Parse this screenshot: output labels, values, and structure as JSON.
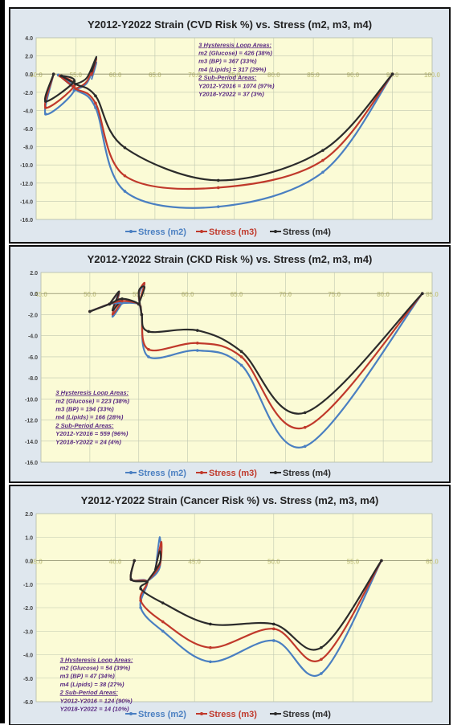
{
  "chart_data": [
    {
      "type": "line",
      "title": "Y2012-Y2022  Strain (CVD Risk %) vs. Stress (m2, m3, m4)",
      "xlim": [
        50.0,
        100.0
      ],
      "ylim": [
        -16.0,
        4.0
      ],
      "x_ticks": [
        "50.0",
        "55.0",
        "60.0",
        "65.0",
        "70.0",
        "75.0",
        "80.0",
        "85.0",
        "90.0",
        "95.0",
        "100.0"
      ],
      "y_ticks": [
        "4.0",
        "2.0",
        "0.0",
        "-2.0",
        "-4.0",
        "-6.0",
        "-8.0",
        "-10.0",
        "-12.0",
        "-14.0",
        "-16.0"
      ],
      "grid": true,
      "legend_position": "bottom",
      "series": [
        {
          "name": "Stress (m2)",
          "color": "#4a7fc1",
          "points": [
            [
              52.2,
              0
            ],
            [
              51.2,
              -4.4
            ],
            [
              54.8,
              -1.8
            ],
            [
              52.8,
              -0.1
            ],
            [
              55.0,
              -1.7
            ],
            [
              57.5,
              -3.7
            ],
            [
              61.2,
              -12.9
            ],
            [
              73.0,
              -14.6
            ],
            [
              86.2,
              -10.8
            ],
            [
              95.0,
              0
            ]
          ]
        },
        {
          "name": "Stress (m3)",
          "color": "#c0392b",
          "points": [
            [
              52.2,
              0
            ],
            [
              51.2,
              -3.7
            ],
            [
              54.8,
              -1.3
            ],
            [
              53.0,
              -0.2
            ],
            [
              55.0,
              -1.6
            ],
            [
              57.5,
              -3.2
            ],
            [
              61.2,
              -11.2
            ],
            [
              73.0,
              -12.5
            ],
            [
              86.2,
              -9.5
            ],
            [
              95.0,
              0
            ]
          ]
        },
        {
          "name": "Stress (m4)",
          "color": "#2b2b2b",
          "points": [
            [
              52.2,
              0
            ],
            [
              51.2,
              -3.0
            ],
            [
              54.8,
              -0.8
            ],
            [
              53.2,
              -0.2
            ],
            [
              55.0,
              -1.1
            ],
            [
              57.5,
              -2.4
            ],
            [
              61.2,
              -8.1
            ],
            [
              73.0,
              -11.7
            ],
            [
              86.2,
              -8.4
            ],
            [
              95.0,
              0
            ]
          ]
        }
      ],
      "loops": [
        {
          "color": "#4a7fc1",
          "start": [
            55.0,
            -1.7
          ],
          "points": [
            [
              56.4,
              -1.0
            ],
            [
              57.6,
              1.3
            ],
            [
              57.0,
              -0.6
            ]
          ]
        },
        {
          "color": "#c0392b",
          "start": [
            55.0,
            -1.6
          ],
          "points": [
            [
              56.4,
              -0.8
            ],
            [
              57.6,
              1.7
            ],
            [
              57.0,
              -0.2
            ]
          ]
        },
        {
          "color": "#2b2b2b",
          "start": [
            55.0,
            -1.1
          ],
          "points": [
            [
              56.4,
              -0.4
            ],
            [
              57.6,
              1.9
            ],
            [
              57.0,
              0.2
            ]
          ]
        }
      ],
      "annotation": {
        "x": 70.5,
        "y": 3.0,
        "lines": [
          "3 Hysteresis Loop Areas:",
          "m2 (Glucose) = 426 (38%)",
          "m3 (BP) = 367 (33%)",
          "m4 (Lipids) = 317 (29%)",
          "2 Sub-Period Areas:",
          "Y2012-Y2016 = 1074 (97%)",
          "Y2018-Y2022 = 37 (3%)"
        ]
      }
    },
    {
      "type": "line",
      "title": "Y2012-Y2022  Strain (CKD Risk %) vs. Stress (m2, m3, m4)",
      "xlim": [
        45.0,
        85.0
      ],
      "ylim": [
        -16.0,
        2.0
      ],
      "x_ticks": [
        "45.0",
        "50.0",
        "55.0",
        "60.0",
        "65.0",
        "70.0",
        "75.0",
        "80.0",
        "85.0"
      ],
      "y_ticks": [
        "2.0",
        "0.0",
        "-2.0",
        "-4.0",
        "-6.0",
        "-8.0",
        "-10.0",
        "-12.0",
        "-14.0",
        "-16.0"
      ],
      "grid": true,
      "legend_position": "bottom",
      "series": [
        {
          "name": "Stress (m2)",
          "color": "#4a7fc1",
          "points": [
            [
              50.0,
              -1.7
            ],
            [
              52.0,
              -1.0
            ],
            [
              53.3,
              -0.9
            ],
            [
              55.0,
              -1.0
            ],
            [
              55.3,
              -2.0
            ],
            [
              56.0,
              -6.0
            ],
            [
              61.0,
              -5.4
            ],
            [
              65.5,
              -6.8
            ],
            [
              72.0,
              -14.5
            ],
            [
              84.0,
              0
            ]
          ]
        },
        {
          "name": "Stress (m3)",
          "color": "#c0392b",
          "points": [
            [
              50.0,
              -1.7
            ],
            [
              52.0,
              -1.0
            ],
            [
              53.3,
              -0.7
            ],
            [
              55.0,
              -1.0
            ],
            [
              55.3,
              -2.0
            ],
            [
              56.0,
              -5.3
            ],
            [
              61.0,
              -4.7
            ],
            [
              65.5,
              -6.0
            ],
            [
              72.0,
              -12.7
            ],
            [
              84.0,
              0
            ]
          ]
        },
        {
          "name": "Stress (m4)",
          "color": "#2b2b2b",
          "points": [
            [
              50.0,
              -1.7
            ],
            [
              52.0,
              -1.0
            ],
            [
              53.3,
              -0.5
            ],
            [
              55.0,
              -1.0
            ],
            [
              55.3,
              -2.0
            ],
            [
              56.0,
              -3.6
            ],
            [
              61.0,
              -3.5
            ],
            [
              65.5,
              -5.5
            ],
            [
              72.0,
              -11.3
            ],
            [
              84.0,
              0
            ]
          ]
        }
      ],
      "loops": [
        {
          "color": "#4a7fc1",
          "start": [
            52.0,
            -1.0
          ],
          "points": [
            [
              53.0,
              0.0
            ],
            [
              52.3,
              -2.2
            ],
            [
              53.3,
              -0.9
            ]
          ]
        },
        {
          "color": "#c0392b",
          "start": [
            52.0,
            -1.0
          ],
          "points": [
            [
              53.0,
              0.1
            ],
            [
              52.3,
              -2.0
            ],
            [
              53.3,
              -0.7
            ]
          ]
        },
        {
          "color": "#2b2b2b",
          "start": [
            52.0,
            -1.0
          ],
          "points": [
            [
              53.0,
              0.2
            ],
            [
              52.3,
              -1.6
            ],
            [
              53.3,
              -0.5
            ]
          ]
        },
        {
          "color": "#4a7fc1",
          "start": [
            55.0,
            -1.0
          ],
          "points": [
            [
              55.6,
              0.9
            ],
            [
              55.0,
              -0.2
            ],
            [
              55.3,
              -2.0
            ]
          ]
        },
        {
          "color": "#c0392b",
          "start": [
            55.0,
            -1.0
          ],
          "points": [
            [
              55.6,
              1.0
            ],
            [
              55.0,
              0.0
            ],
            [
              55.3,
              -2.0
            ]
          ]
        },
        {
          "color": "#2b2b2b",
          "start": [
            55.0,
            -1.0
          ],
          "points": [
            [
              55.6,
              0.6
            ],
            [
              55.0,
              0.2
            ],
            [
              55.3,
              -2.0
            ]
          ]
        }
      ],
      "annotation": {
        "x": 46.5,
        "y": -9.6,
        "lines": [
          "3 Hysteresis Loop Areas:",
          "m2 (Glucose) = 223 (38%)",
          "m3 (BP) = 194 (33%)",
          "m4 (Lipids) = 166 (28%)",
          "2 Sub-Period Areas:",
          "Y2012-Y2016 = 559 (96%)",
          "Y2018-Y2022 = 24 (4%)"
        ]
      }
    },
    {
      "type": "line",
      "title": "Y2012-Y2022  Strain (Cancer Risk %) vs. Stress (m2, m3, m4)",
      "xlim": [
        35.0,
        60.0
      ],
      "ylim": [
        -6.0,
        2.0
      ],
      "x_ticks": [
        "35.0",
        "40.0",
        "45.0",
        "50.0",
        "55.0",
        "60.0"
      ],
      "y_ticks": [
        "2.0",
        "1.0",
        "0.0",
        "-1.0",
        "-2.0",
        "-3.0",
        "-4.0",
        "-5.0",
        "-6.0"
      ],
      "grid": true,
      "legend_position": "bottom",
      "series": [
        {
          "name": "Stress (m2)",
          "color": "#4a7fc1",
          "points": [
            [
              41.2,
              0
            ],
            [
              41.0,
              -0.8
            ],
            [
              42.0,
              -0.9
            ],
            [
              41.6,
              -2.0
            ],
            [
              43.0,
              -3.0
            ],
            [
              46.0,
              -4.3
            ],
            [
              50.0,
              -3.4
            ],
            [
              53.0,
              -4.8
            ],
            [
              56.8,
              0
            ]
          ]
        },
        {
          "name": "Stress (m3)",
          "color": "#c0392b",
          "points": [
            [
              41.2,
              0
            ],
            [
              41.0,
              -0.8
            ],
            [
              42.0,
              -0.9
            ],
            [
              41.6,
              -1.7
            ],
            [
              43.0,
              -2.6
            ],
            [
              46.0,
              -3.7
            ],
            [
              50.0,
              -2.9
            ],
            [
              53.0,
              -4.2
            ],
            [
              56.8,
              0
            ]
          ]
        },
        {
          "name": "Stress (m4)",
          "color": "#2b2b2b",
          "points": [
            [
              41.2,
              0
            ],
            [
              41.0,
              -0.8
            ],
            [
              42.0,
              -0.9
            ],
            [
              41.6,
              -1.2
            ],
            [
              43.0,
              -1.8
            ],
            [
              46.0,
              -2.7
            ],
            [
              50.0,
              -2.7
            ],
            [
              53.0,
              -3.7
            ],
            [
              56.8,
              0
            ]
          ]
        }
      ],
      "loops": [
        {
          "color": "#4a7fc1",
          "start": [
            42.0,
            -0.9
          ],
          "points": [
            [
              42.8,
              -0.3
            ],
            [
              42.8,
              1.0
            ],
            [
              42.5,
              -0.6
            ]
          ]
        },
        {
          "color": "#c0392b",
          "start": [
            42.0,
            -0.9
          ],
          "points": [
            [
              42.8,
              -0.2
            ],
            [
              42.9,
              0.8
            ],
            [
              42.5,
              -0.5
            ]
          ]
        },
        {
          "color": "#2b2b2b",
          "start": [
            42.0,
            -0.9
          ],
          "points": [
            [
              42.8,
              -0.1
            ],
            [
              42.8,
              0.4
            ],
            [
              42.5,
              -0.4
            ]
          ]
        }
      ],
      "annotation": {
        "x": 36.5,
        "y": -4.3,
        "lines": [
          "3 Hysteresis Loop Areas:",
          "m2 (Glucose) = 54 (39%)",
          "m3 (BP) = 47 (34%)",
          "m4 (Lipids) = 38 (27%)",
          "2 Sub-Period Areas:",
          "Y2012-Y2016 = 124 (90%)",
          "Y2018-Y2022 = 14 (10%)"
        ]
      }
    }
  ],
  "colors": {
    "plot_bg": "#fbfbd6",
    "frame_bg": "#dfe7ee",
    "grid": "#bfc7b0",
    "axis_text": "#444444",
    "annotation": "#5a2a82",
    "title": "#222222"
  }
}
